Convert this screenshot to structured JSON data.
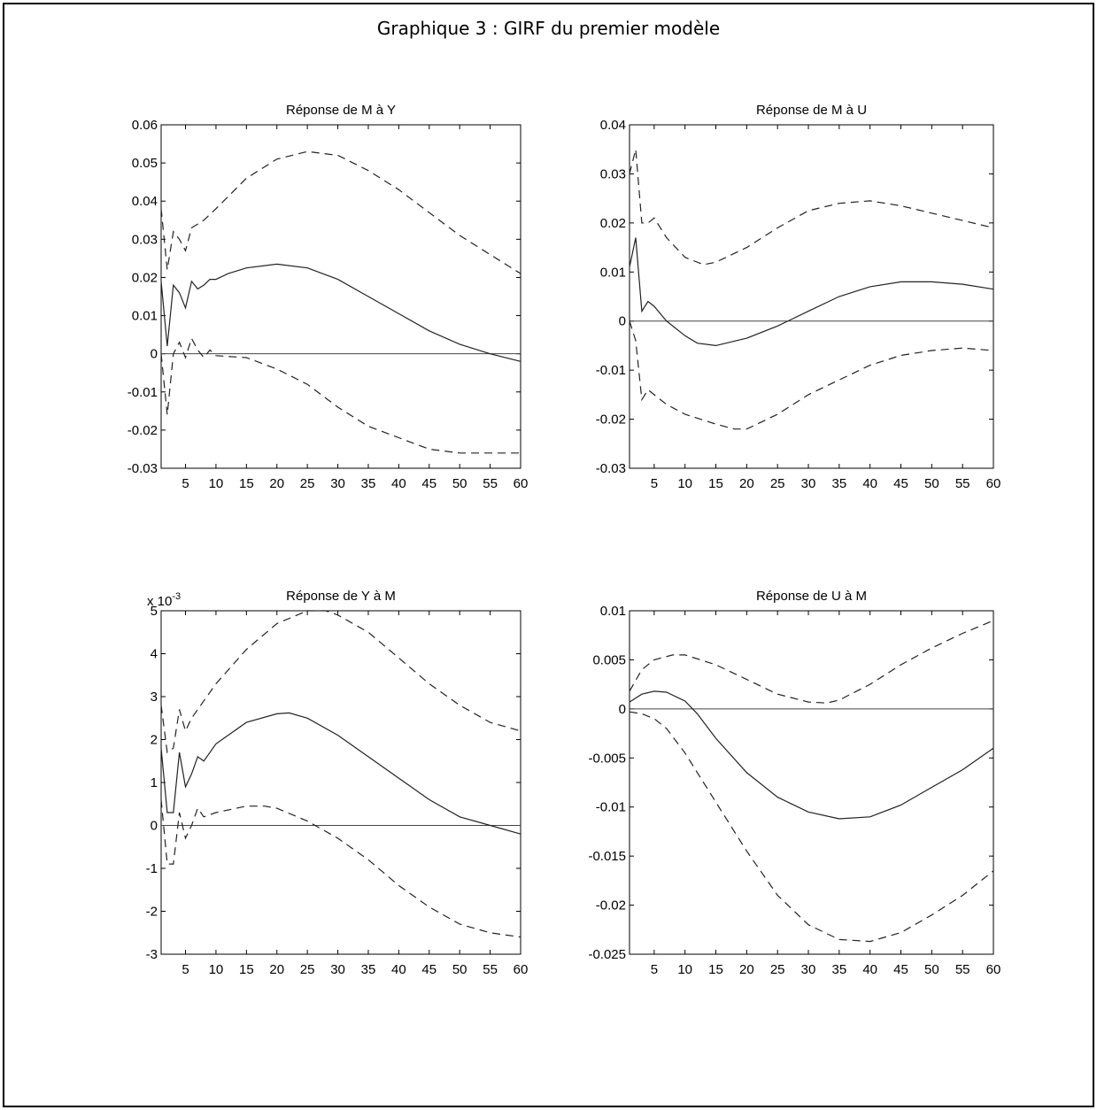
{
  "title": "Graphique 3 : GIRF du premier modèle",
  "chart_data": [
    {
      "type": "line",
      "title": "Réponse de M à Y",
      "xlim": [
        1,
        60
      ],
      "ylim": [
        -0.03,
        0.06
      ],
      "xticks": [
        "5",
        "10",
        "15",
        "20",
        "25",
        "30",
        "35",
        "40",
        "45",
        "50",
        "55",
        "60"
      ],
      "yticks": [
        "-0.03",
        "-0.02",
        "-0.01",
        "0",
        "0.01",
        "0.02",
        "0.03",
        "0.04",
        "0.05",
        "0.06"
      ],
      "exponent_label": "",
      "zero_line": true,
      "series": [
        {
          "style": "solid",
          "points": [
            [
              1,
              0.019
            ],
            [
              2,
              0.002
            ],
            [
              3,
              0.018
            ],
            [
              4,
              0.016
            ],
            [
              5,
              0.012
            ],
            [
              6,
              0.019
            ],
            [
              7,
              0.017
            ],
            [
              8,
              0.018
            ],
            [
              9,
              0.0195
            ],
            [
              10,
              0.0195
            ],
            [
              12,
              0.021
            ],
            [
              15,
              0.0225
            ],
            [
              20,
              0.0235
            ],
            [
              25,
              0.0225
            ],
            [
              30,
              0.0195
            ],
            [
              35,
              0.015
            ],
            [
              40,
              0.0105
            ],
            [
              45,
              0.006
            ],
            [
              50,
              0.0025
            ],
            [
              55,
              0.0
            ],
            [
              60,
              -0.002
            ]
          ]
        },
        {
          "style": "dashed",
          "points": [
            [
              1,
              0.038
            ],
            [
              2,
              0.022
            ],
            [
              3,
              0.032
            ],
            [
              4,
              0.03
            ],
            [
              5,
              0.027
            ],
            [
              6,
              0.033
            ],
            [
              7,
              0.034
            ],
            [
              8,
              0.035
            ],
            [
              10,
              0.038
            ],
            [
              15,
              0.046
            ],
            [
              20,
              0.051
            ],
            [
              25,
              0.053
            ],
            [
              30,
              0.052
            ],
            [
              35,
              0.048
            ],
            [
              40,
              0.043
            ],
            [
              45,
              0.037
            ],
            [
              50,
              0.031
            ],
            [
              55,
              0.026
            ],
            [
              60,
              0.021
            ]
          ]
        },
        {
          "style": "dashed",
          "points": [
            [
              1,
              0.0
            ],
            [
              2,
              -0.016
            ],
            [
              3,
              0.0
            ],
            [
              4,
              0.003
            ],
            [
              5,
              -0.001
            ],
            [
              6,
              0.004
            ],
            [
              7,
              0.001
            ],
            [
              8,
              -0.001
            ],
            [
              9,
              0.001
            ],
            [
              10,
              -0.0005
            ],
            [
              15,
              -0.001
            ],
            [
              20,
              -0.004
            ],
            [
              25,
              -0.008
            ],
            [
              30,
              -0.014
            ],
            [
              35,
              -0.019
            ],
            [
              40,
              -0.022
            ],
            [
              45,
              -0.025
            ],
            [
              50,
              -0.026
            ],
            [
              55,
              -0.026
            ],
            [
              60,
              -0.026
            ]
          ]
        }
      ]
    },
    {
      "type": "line",
      "title": "Réponse de M à U",
      "xlim": [
        1,
        60
      ],
      "ylim": [
        -0.03,
        0.04
      ],
      "xticks": [
        "5",
        "10",
        "15",
        "20",
        "25",
        "30",
        "35",
        "40",
        "45",
        "50",
        "55",
        "60"
      ],
      "yticks": [
        "-0.03",
        "-0.02",
        "-0.01",
        "0",
        "0.01",
        "0.02",
        "0.03",
        "0.04"
      ],
      "exponent_label": "",
      "zero_line": true,
      "series": [
        {
          "style": "solid",
          "points": [
            [
              1,
              0.011
            ],
            [
              2,
              0.017
            ],
            [
              3,
              0.002
            ],
            [
              4,
              0.004
            ],
            [
              5,
              0.003
            ],
            [
              7,
              0.0
            ],
            [
              10,
              -0.003
            ],
            [
              12,
              -0.0045
            ],
            [
              15,
              -0.005
            ],
            [
              20,
              -0.0035
            ],
            [
              25,
              -0.001
            ],
            [
              30,
              0.002
            ],
            [
              35,
              0.005
            ],
            [
              40,
              0.007
            ],
            [
              45,
              0.008
            ],
            [
              50,
              0.008
            ],
            [
              55,
              0.0075
            ],
            [
              60,
              0.0065
            ]
          ]
        },
        {
          "style": "dashed",
          "points": [
            [
              1,
              0.03
            ],
            [
              2,
              0.035
            ],
            [
              3,
              0.02
            ],
            [
              4,
              0.02
            ],
            [
              5,
              0.021
            ],
            [
              7,
              0.017
            ],
            [
              10,
              0.013
            ],
            [
              13,
              0.0115
            ],
            [
              15,
              0.012
            ],
            [
              20,
              0.015
            ],
            [
              25,
              0.019
            ],
            [
              30,
              0.0225
            ],
            [
              35,
              0.024
            ],
            [
              40,
              0.0245
            ],
            [
              45,
              0.0235
            ],
            [
              50,
              0.022
            ],
            [
              55,
              0.0205
            ],
            [
              60,
              0.019
            ]
          ]
        },
        {
          "style": "dashed",
          "points": [
            [
              1,
              0.0
            ],
            [
              2,
              -0.004
            ],
            [
              3,
              -0.016
            ],
            [
              4,
              -0.014
            ],
            [
              5,
              -0.015
            ],
            [
              7,
              -0.017
            ],
            [
              10,
              -0.019
            ],
            [
              15,
              -0.021
            ],
            [
              18,
              -0.022
            ],
            [
              20,
              -0.022
            ],
            [
              25,
              -0.019
            ],
            [
              30,
              -0.015
            ],
            [
              35,
              -0.012
            ],
            [
              40,
              -0.009
            ],
            [
              45,
              -0.007
            ],
            [
              50,
              -0.006
            ],
            [
              55,
              -0.0055
            ],
            [
              60,
              -0.006
            ]
          ]
        }
      ]
    },
    {
      "type": "line",
      "title": "Réponse de Y à M",
      "xlim": [
        1,
        60
      ],
      "ylim": [
        -3,
        5
      ],
      "xticks": [
        "5",
        "10",
        "15",
        "20",
        "25",
        "30",
        "35",
        "40",
        "45",
        "50",
        "55",
        "60"
      ],
      "yticks": [
        "-3",
        "-2",
        "-1",
        "0",
        "1",
        "2",
        "3",
        "4",
        "5"
      ],
      "exponent_label": "x 10",
      "exponent_power": "-3",
      "zero_line": true,
      "series": [
        {
          "style": "solid",
          "points": [
            [
              1,
              1.8
            ],
            [
              2,
              0.3
            ],
            [
              3,
              0.3
            ],
            [
              4,
              1.7
            ],
            [
              5,
              0.9
            ],
            [
              6,
              1.2
            ],
            [
              7,
              1.6
            ],
            [
              8,
              1.5
            ],
            [
              10,
              1.9
            ],
            [
              12,
              2.1
            ],
            [
              15,
              2.4
            ],
            [
              20,
              2.6
            ],
            [
              22,
              2.62
            ],
            [
              25,
              2.5
            ],
            [
              30,
              2.1
            ],
            [
              35,
              1.6
            ],
            [
              40,
              1.1
            ],
            [
              45,
              0.6
            ],
            [
              50,
              0.2
            ],
            [
              55,
              0.0
            ],
            [
              60,
              -0.2
            ]
          ]
        },
        {
          "style": "dashed",
          "points": [
            [
              1,
              2.8
            ],
            [
              2,
              1.7
            ],
            [
              3,
              1.8
            ],
            [
              4,
              2.7
            ],
            [
              5,
              2.2
            ],
            [
              6,
              2.5
            ],
            [
              7,
              2.7
            ],
            [
              10,
              3.3
            ],
            [
              15,
              4.1
            ],
            [
              20,
              4.7
            ],
            [
              25,
              5.0
            ],
            [
              28,
              5.0
            ],
            [
              30,
              4.9
            ],
            [
              35,
              4.5
            ],
            [
              40,
              3.9
            ],
            [
              45,
              3.3
            ],
            [
              50,
              2.8
            ],
            [
              55,
              2.4
            ],
            [
              60,
              2.2
            ]
          ]
        },
        {
          "style": "dashed",
          "points": [
            [
              1,
              0.6
            ],
            [
              2,
              -0.9
            ],
            [
              3,
              -0.9
            ],
            [
              4,
              0.3
            ],
            [
              5,
              -0.3
            ],
            [
              6,
              0.0
            ],
            [
              7,
              0.4
            ],
            [
              8,
              0.2
            ],
            [
              10,
              0.3
            ],
            [
              15,
              0.45
            ],
            [
              18,
              0.45
            ],
            [
              20,
              0.4
            ],
            [
              25,
              0.1
            ],
            [
              30,
              -0.3
            ],
            [
              35,
              -0.8
            ],
            [
              40,
              -1.4
            ],
            [
              45,
              -1.9
            ],
            [
              50,
              -2.3
            ],
            [
              55,
              -2.5
            ],
            [
              60,
              -2.6
            ]
          ]
        }
      ]
    },
    {
      "type": "line",
      "title": "Réponse de U à M",
      "xlim": [
        1,
        60
      ],
      "ylim": [
        -0.025,
        0.01
      ],
      "xticks": [
        "5",
        "10",
        "15",
        "20",
        "25",
        "30",
        "35",
        "40",
        "45",
        "50",
        "55",
        "60"
      ],
      "yticks": [
        "-0.025",
        "-0.02",
        "-0.015",
        "-0.01",
        "-0.005",
        "0",
        "0.005",
        "0.01"
      ],
      "exponent_label": "",
      "zero_line": true,
      "series": [
        {
          "style": "solid",
          "points": [
            [
              1,
              0.0007
            ],
            [
              3,
              0.0015
            ],
            [
              5,
              0.0018
            ],
            [
              7,
              0.0017
            ],
            [
              10,
              0.0008
            ],
            [
              12,
              -0.0005
            ],
            [
              15,
              -0.003
            ],
            [
              20,
              -0.0065
            ],
            [
              25,
              -0.009
            ],
            [
              30,
              -0.0105
            ],
            [
              35,
              -0.0112
            ],
            [
              40,
              -0.011
            ],
            [
              45,
              -0.0098
            ],
            [
              50,
              -0.008
            ],
            [
              55,
              -0.0062
            ],
            [
              60,
              -0.004
            ]
          ]
        },
        {
          "style": "dashed",
          "points": [
            [
              1,
              0.0018
            ],
            [
              3,
              0.004
            ],
            [
              5,
              0.005
            ],
            [
              8,
              0.0055
            ],
            [
              10,
              0.0055
            ],
            [
              15,
              0.0045
            ],
            [
              20,
              0.003
            ],
            [
              25,
              0.0015
            ],
            [
              30,
              0.0007
            ],
            [
              33,
              0.0006
            ],
            [
              35,
              0.0009
            ],
            [
              40,
              0.0025
            ],
            [
              45,
              0.0045
            ],
            [
              50,
              0.0062
            ],
            [
              55,
              0.0077
            ],
            [
              60,
              0.009
            ]
          ]
        },
        {
          "style": "dashed",
          "points": [
            [
              1,
              -0.0003
            ],
            [
              3,
              -0.0005
            ],
            [
              5,
              -0.001
            ],
            [
              7,
              -0.002
            ],
            [
              10,
              -0.0045
            ],
            [
              15,
              -0.0095
            ],
            [
              20,
              -0.0145
            ],
            [
              25,
              -0.019
            ],
            [
              30,
              -0.022
            ],
            [
              35,
              -0.0235
            ],
            [
              40,
              -0.0237
            ],
            [
              45,
              -0.0228
            ],
            [
              50,
              -0.021
            ],
            [
              55,
              -0.019
            ],
            [
              60,
              -0.0165
            ]
          ]
        }
      ]
    }
  ]
}
